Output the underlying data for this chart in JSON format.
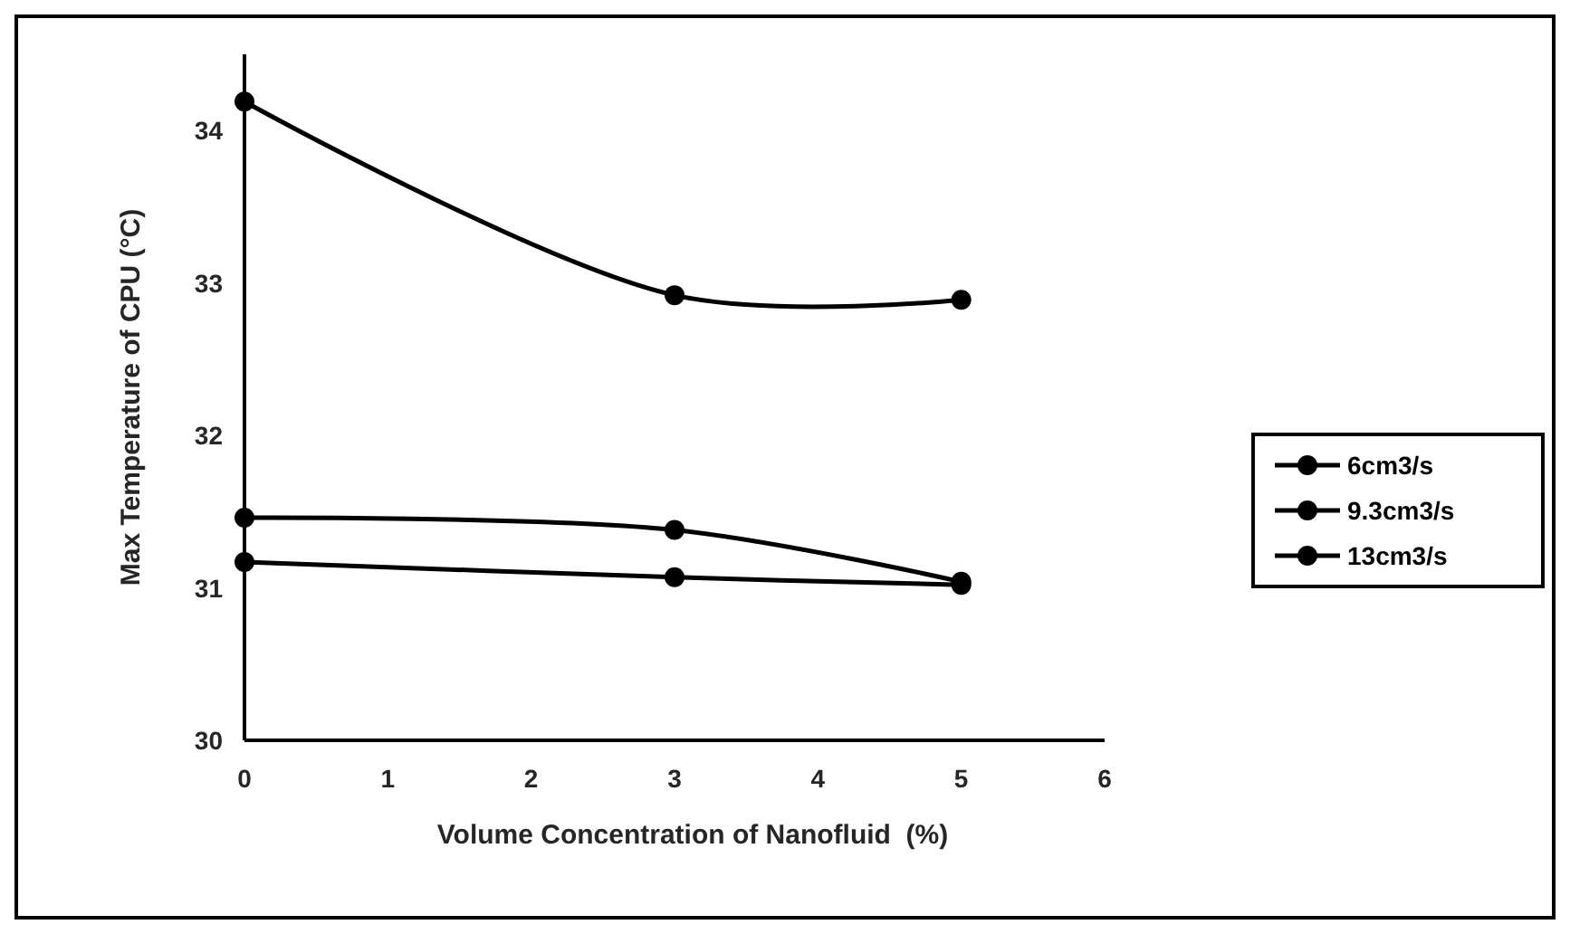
{
  "chart_data": {
    "type": "line",
    "xlabel": "Volume Concentration of Nanofluid  (%)",
    "ylabel": "Max Temperature of CPU (°C)",
    "x": [
      0,
      3,
      5
    ],
    "series": [
      {
        "name": "6cm3/s",
        "color": "#000000",
        "values": [
          34.19,
          32.92,
          32.89
        ]
      },
      {
        "name": "9.3cm3/s",
        "color": "#000000",
        "values": [
          31.46,
          31.38,
          31.04
        ]
      },
      {
        "name": "13cm3/s",
        "color": "#000000",
        "values": [
          31.17,
          31.07,
          31.02
        ]
      }
    ],
    "xlim": [
      0,
      6
    ],
    "xticks": [
      0,
      1,
      2,
      3,
      4,
      5,
      6
    ],
    "ylim": [
      30,
      34.5
    ],
    "yticks": [
      30,
      31,
      32,
      33,
      34
    ],
    "grid": false,
    "legend": "right",
    "marker": "circle",
    "line_style": "solid"
  }
}
